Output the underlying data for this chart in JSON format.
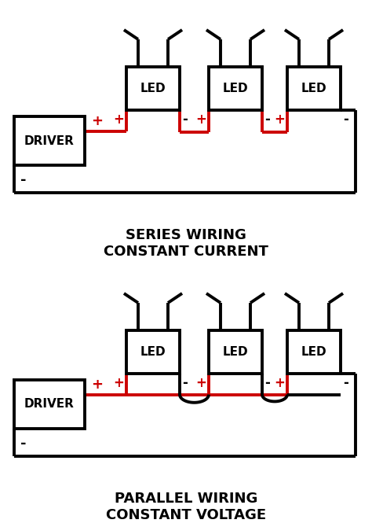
{
  "bg_color": "#ffffff",
  "line_color": "#000000",
  "red_color": "#cc0000",
  "lw": 2.8,
  "title1": "SERIES WIRING\nCONSTANT CURRENT",
  "title2": "PARALLEL WIRING\nCONSTANT VOLTAGE",
  "driver_label": "DRIVER",
  "led_label": "LED",
  "fig_w": 4.74,
  "fig_h": 6.7,
  "dpi": 100
}
